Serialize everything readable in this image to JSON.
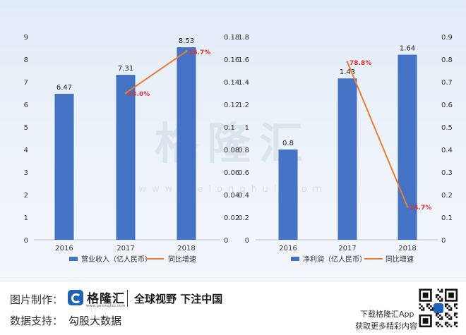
{
  "watermark": {
    "brand": "格隆汇",
    "url": "www.gelonghui.com"
  },
  "chart_data": [
    {
      "type": "bar",
      "categories": [
        "2016",
        "2017",
        "2018"
      ],
      "series": [
        {
          "name": "营业收入（亿人民币）",
          "axis": "left",
          "values": [
            6.47,
            7.31,
            8.53
          ],
          "labels": [
            "6.47",
            "7.31",
            "8.53"
          ],
          "color": "#4472c4"
        },
        {
          "name": "同比增速",
          "axis": "right",
          "kind": "line",
          "values": [
            null,
            0.13,
            0.167
          ],
          "labels": [
            "",
            "13.0%",
            "16.7%"
          ],
          "color": "#ed7d31",
          "label_color": "#e03030"
        }
      ],
      "ylim": [
        0,
        9
      ],
      "y_ticks": [
        "0",
        "1",
        "2",
        "3",
        "4",
        "5",
        "6",
        "7",
        "8",
        "9"
      ],
      "y2lim": [
        0,
        0.18
      ],
      "y2_ticks": [
        "0",
        "0.02",
        "0.04",
        "0.06",
        "0.08",
        "0.1",
        "0.12",
        "0.14",
        "0.16",
        "0.18"
      ],
      "legend": "bottom"
    },
    {
      "type": "bar",
      "categories": [
        "2016",
        "2017",
        "2018"
      ],
      "series": [
        {
          "name": "净利润（亿人民币）",
          "axis": "left",
          "values": [
            0.8,
            1.43,
            1.64
          ],
          "labels": [
            "0.8",
            "1.43",
            "1.64"
          ],
          "color": "#4472c4"
        },
        {
          "name": "同比增速",
          "axis": "right",
          "kind": "line",
          "values": [
            null,
            0.788,
            0.147
          ],
          "labels": [
            "",
            "78.8%",
            "14.7%"
          ],
          "color": "#ed7d31",
          "label_color": "#e03030"
        }
      ],
      "ylim": [
        0,
        1.8
      ],
      "y_ticks": [
        "0",
        "0.2",
        "0.4",
        "0.6",
        "0.8",
        "1",
        "1.2",
        "1.4",
        "1.6",
        "1.8"
      ],
      "y2lim": [
        0,
        0.9
      ],
      "y2_ticks": [
        "0",
        "0.1",
        "0.2",
        "0.3",
        "0.4",
        "0.5",
        "0.6",
        "0.7",
        "0.8",
        "0.9"
      ],
      "legend": "bottom"
    }
  ],
  "footer": {
    "credit_label": "图片制作：",
    "logo_text": "格隆汇",
    "logo_url": "www.gelonghui.com",
    "slogan": "全球视野 下注中国",
    "source_label": "数据支持：",
    "source_value": "勾股大数据",
    "app_line1": "下载格隆汇App",
    "app_line2": "获取更多精彩内容"
  }
}
